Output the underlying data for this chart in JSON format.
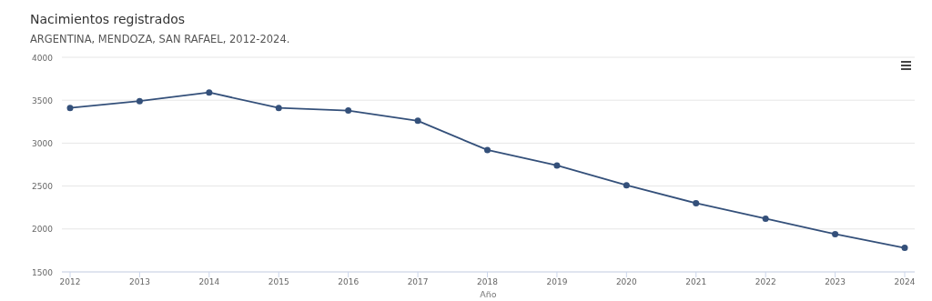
{
  "chart_data": {
    "type": "line",
    "title": "Nacimientos registrados",
    "subtitle": "ARGENTINA, MENDOZA, SAN RAFAEL, 2012-2024.",
    "xlabel": "Año",
    "categories": [
      "2012",
      "2013",
      "2014",
      "2015",
      "2016",
      "2017",
      "2018",
      "2019",
      "2020",
      "2021",
      "2022",
      "2023",
      "2024"
    ],
    "series": [
      {
        "color": "#34507a",
        "values": [
          3410,
          3490,
          3590,
          3410,
          3380,
          3260,
          2920,
          2740,
          2510,
          2300,
          2120,
          1940,
          1780
        ]
      }
    ],
    "ylim": [
      1500,
      4000
    ],
    "yticks": [
      1500,
      2000,
      2500,
      3000,
      3500,
      4000
    ],
    "grid": "y",
    "marker": "circle",
    "line_style": "solid"
  }
}
